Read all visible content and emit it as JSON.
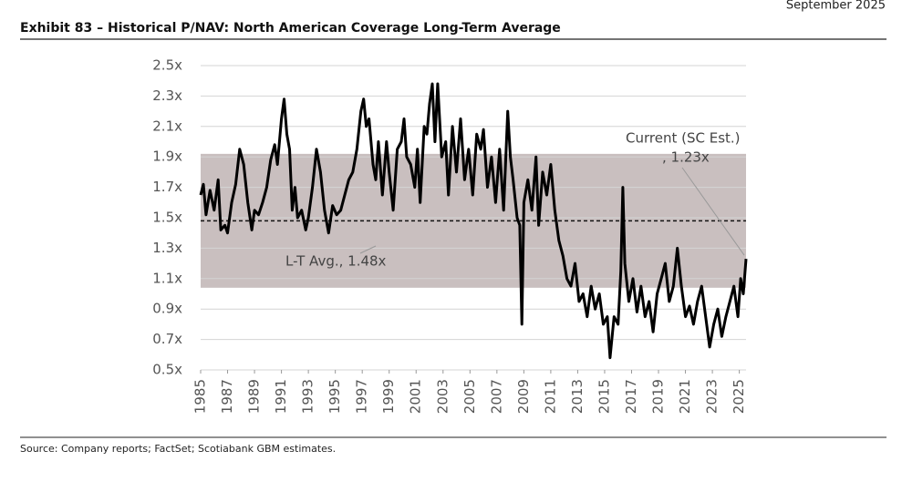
{
  "header": {
    "title": "Exhibit 83 – Historical P/NAV: North American Coverage Long-Term Average",
    "date": "September 2025"
  },
  "chart_data": {
    "type": "line",
    "x": [
      1985.0,
      1985.2,
      1985.4,
      1985.7,
      1986.0,
      1986.3,
      1986.5,
      1986.8,
      1987.0,
      1987.3,
      1987.6,
      1987.9,
      1988.2,
      1988.5,
      1988.8,
      1989.0,
      1989.3,
      1989.6,
      1989.9,
      1990.2,
      1990.5,
      1990.7,
      1991.0,
      1991.2,
      1991.4,
      1991.6,
      1991.8,
      1992.0,
      1992.2,
      1992.5,
      1992.8,
      1993.0,
      1993.3,
      1993.6,
      1993.9,
      1994.2,
      1994.5,
      1994.8,
      1995.1,
      1995.4,
      1995.7,
      1996.0,
      1996.3,
      1996.6,
      1996.9,
      1997.1,
      1997.3,
      1997.5,
      1997.8,
      1998.0,
      1998.2,
      1998.5,
      1998.8,
      1999.0,
      1999.3,
      1999.6,
      1999.9,
      2000.1,
      2000.3,
      2000.6,
      2000.9,
      2001.1,
      2001.3,
      2001.6,
      2001.8,
      2002.0,
      2002.2,
      2002.4,
      2002.6,
      2002.9,
      2003.2,
      2003.4,
      2003.7,
      2004.0,
      2004.3,
      2004.6,
      2004.9,
      2005.2,
      2005.5,
      2005.8,
      2006.0,
      2006.3,
      2006.6,
      2006.9,
      2007.2,
      2007.5,
      2007.8,
      2008.0,
      2008.2,
      2008.5,
      2008.7,
      2008.85,
      2009.0,
      2009.3,
      2009.6,
      2009.9,
      2010.1,
      2010.4,
      2010.7,
      2011.0,
      2011.3,
      2011.6,
      2011.9,
      2012.2,
      2012.5,
      2012.8,
      2013.1,
      2013.4,
      2013.7,
      2014.0,
      2014.3,
      2014.6,
      2014.9,
      2015.2,
      2015.4,
      2015.7,
      2016.0,
      2016.2,
      2016.35,
      2016.5,
      2016.8,
      2017.1,
      2017.4,
      2017.7,
      2018.0,
      2018.3,
      2018.6,
      2018.9,
      2019.2,
      2019.5,
      2019.8,
      2020.1,
      2020.4,
      2020.7,
      2021.0,
      2021.3,
      2021.6,
      2021.9,
      2022.2,
      2022.5,
      2022.8,
      2023.1,
      2023.4,
      2023.7,
      2024.0,
      2024.3,
      2024.6,
      2024.9,
      2025.1,
      2025.3,
      2025.5
    ],
    "values": [
      1.65,
      1.72,
      1.52,
      1.68,
      1.55,
      1.75,
      1.42,
      1.45,
      1.4,
      1.6,
      1.72,
      1.95,
      1.85,
      1.6,
      1.42,
      1.55,
      1.52,
      1.6,
      1.7,
      1.88,
      1.98,
      1.85,
      2.15,
      2.28,
      2.05,
      1.95,
      1.55,
      1.7,
      1.5,
      1.55,
      1.42,
      1.5,
      1.7,
      1.95,
      1.8,
      1.55,
      1.4,
      1.58,
      1.52,
      1.55,
      1.65,
      1.75,
      1.8,
      1.95,
      2.2,
      2.28,
      2.1,
      2.15,
      1.85,
      1.75,
      2.0,
      1.65,
      2.0,
      1.8,
      1.55,
      1.95,
      2.0,
      2.15,
      1.9,
      1.85,
      1.7,
      1.95,
      1.6,
      2.1,
      2.05,
      2.25,
      2.38,
      2.0,
      2.38,
      1.9,
      2.0,
      1.65,
      2.1,
      1.8,
      2.15,
      1.75,
      1.95,
      1.65,
      2.05,
      1.95,
      2.08,
      1.7,
      1.9,
      1.6,
      1.95,
      1.55,
      2.2,
      1.9,
      1.75,
      1.5,
      1.45,
      0.8,
      1.6,
      1.75,
      1.55,
      1.9,
      1.45,
      1.8,
      1.65,
      1.85,
      1.55,
      1.35,
      1.25,
      1.1,
      1.05,
      1.2,
      0.95,
      1.0,
      0.85,
      1.05,
      0.9,
      1.0,
      0.8,
      0.85,
      0.58,
      0.85,
      0.8,
      1.15,
      1.7,
      1.2,
      0.95,
      1.1,
      0.88,
      1.05,
      0.85,
      0.95,
      0.75,
      1.0,
      1.1,
      1.2,
      0.95,
      1.05,
      1.3,
      1.05,
      0.85,
      0.92,
      0.8,
      0.95,
      1.05,
      0.85,
      0.65,
      0.8,
      0.9,
      0.72,
      0.85,
      0.95,
      1.05,
      0.85,
      1.1,
      1.0,
      1.23
    ],
    "color": "#000000",
    "xlim": [
      1985,
      2025.5
    ],
    "xticks": [
      1985,
      1987,
      1989,
      1991,
      1993,
      1995,
      1997,
      1999,
      2001,
      2003,
      2005,
      2007,
      2009,
      2011,
      2013,
      2015,
      2017,
      2019,
      2021,
      2023,
      2025
    ],
    "ylim": [
      0.5,
      2.5
    ],
    "yticks": [
      {
        "value": 0.5,
        "label": "0.5x"
      },
      {
        "value": 0.7,
        "label": "0.7x"
      },
      {
        "value": 0.9,
        "label": "0.9x"
      },
      {
        "value": 1.1,
        "label": "1.1x"
      },
      {
        "value": 1.3,
        "label": "1.3x"
      },
      {
        "value": 1.5,
        "label": "1.5x"
      },
      {
        "value": 1.7,
        "label": "1.7x"
      },
      {
        "value": 1.9,
        "label": "1.9x"
      },
      {
        "value": 2.1,
        "label": "2.1x"
      },
      {
        "value": 2.3,
        "label": "2.3x"
      },
      {
        "value": 2.5,
        "label": "2.5x"
      }
    ],
    "grid": true,
    "band": {
      "low": 1.04,
      "high": 1.92,
      "color": "#c9bfbf"
    },
    "average": 1.48,
    "annotations": [
      "L-T Avg., 1.48x",
      "Current (SC Est.)",
      ", 1.23x"
    ]
  },
  "source": "Source: Company reports; FactSet; Scotiabank GBM estimates."
}
